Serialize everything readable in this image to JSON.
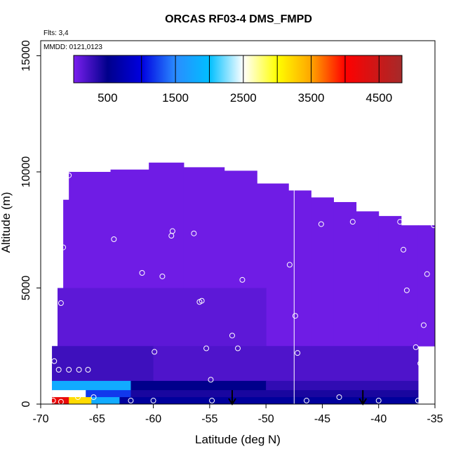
{
  "chart_data": {
    "type": "curtain",
    "title": "ORCAS RF03-4 DMS_FMPD",
    "x_label": "Latitude (deg N)",
    "y_label": "Altitude (m)",
    "annotations": [
      "Flts: 3,4",
      "MMDD: 0121,0123"
    ],
    "xlim": [
      -70,
      -35
    ],
    "ylim": [
      0,
      15650
    ],
    "xticks": [
      -70,
      -65,
      -60,
      -55,
      -50,
      -45,
      -40,
      -35
    ],
    "yticks": [
      0,
      5000,
      10000,
      15000
    ],
    "colorbar_lim": [
      0,
      4838
    ],
    "colorbar_ticks": [
      500,
      1500,
      2500,
      3500,
      4500
    ],
    "colorbar_breaks": [
      1000,
      1500,
      2000,
      2500,
      3000,
      3500,
      4000,
      4500
    ],
    "colormap": [
      [
        0,
        "#7b1fef"
      ],
      [
        500,
        "#00008b"
      ],
      [
        1000,
        "#0000e0"
      ],
      [
        1500,
        "#2a8cff"
      ],
      [
        2000,
        "#00bfff"
      ],
      [
        2500,
        "#ffffff"
      ],
      [
        3000,
        "#ffff00"
      ],
      [
        3500,
        "#ffa500"
      ],
      [
        4000,
        "#ff0000"
      ],
      [
        4838,
        "#a52a2a"
      ]
    ],
    "cells": [
      [
        -69,
        -68.5,
        0,
        2000,
        60
      ],
      [
        -68.5,
        -68,
        0,
        5000,
        60
      ],
      [
        -68,
        -67.5,
        0,
        8800,
        50
      ],
      [
        -67.5,
        -63.8,
        0,
        10000,
        50
      ],
      [
        -63.8,
        -60.4,
        0,
        10100,
        50
      ],
      [
        -60.4,
        -57.3,
        0,
        10400,
        50
      ],
      [
        -57.3,
        -53.7,
        0,
        10200,
        50
      ],
      [
        -53.7,
        -50.8,
        0,
        10050,
        50
      ],
      [
        -50.8,
        -48,
        0,
        9500,
        50
      ],
      [
        -48,
        -46,
        0,
        9200,
        50
      ],
      [
        -46,
        -44,
        0,
        8900,
        50
      ],
      [
        -44,
        -42,
        0,
        8700,
        50
      ],
      [
        -42,
        -40,
        0,
        8300,
        50
      ],
      [
        -40,
        -38,
        0,
        8100,
        50
      ],
      [
        -38,
        -36.5,
        0,
        7700,
        50
      ],
      [
        -36.5,
        -35,
        2500,
        7700,
        50
      ],
      [
        -68.5,
        -50,
        2500,
        5000,
        120
      ],
      [
        -69,
        -60,
        1000,
        2500,
        250
      ],
      [
        -60,
        -36.5,
        1000,
        2500,
        180
      ],
      [
        -69,
        -62,
        600,
        1000,
        1800
      ],
      [
        -62,
        -50,
        600,
        1000,
        500
      ],
      [
        -50,
        -36.5,
        600,
        1000,
        300
      ],
      [
        -69,
        -66,
        300,
        600,
        2500
      ],
      [
        -66,
        -62,
        300,
        600,
        1200
      ],
      [
        -62,
        -36.5,
        300,
        600,
        400
      ],
      [
        -69,
        -67.5,
        0,
        300,
        4200
      ],
      [
        -67.5,
        -65.5,
        0,
        300,
        3200
      ],
      [
        -65.5,
        -63,
        0,
        300,
        1800
      ],
      [
        -63,
        -36.5,
        0,
        300,
        600
      ]
    ],
    "divider_lat": -47.5,
    "divider_top": 9200,
    "arrows": [
      -53,
      -41.4
    ],
    "arrow_length": 600,
    "points": {
      "x": [
        -68.8,
        -68.4,
        -67.5,
        -66.6,
        -65.8,
        -68,
        -67.5,
        -68.2,
        -68.9,
        -68.2,
        -66.7,
        -65.3,
        -63.5,
        -61,
        -59.2,
        -58.3,
        -58.4,
        -56.4,
        -55.9,
        -55.7,
        -59.9,
        -55.3,
        -54.9,
        -54.8,
        -53,
        -52.5,
        -52.1,
        -62,
        -60,
        -47.9,
        -47.4,
        -47.2,
        -46.4,
        -45.1,
        -43.5,
        -42.3,
        -40,
        -38.1,
        -37.8,
        -37.5,
        -36.7,
        -36.3,
        -36.5,
        -36,
        -35.7,
        -35.1
      ],
      "y": [
        1850,
        1480,
        1480,
        1480,
        1480,
        6750,
        9850,
        4350,
        150,
        100,
        300,
        300,
        7100,
        5650,
        5500,
        7450,
        7250,
        7350,
        4400,
        4450,
        2250,
        2400,
        1050,
        150,
        2950,
        2400,
        5350,
        150,
        150,
        6000,
        3800,
        2200,
        150,
        7750,
        300,
        7850,
        150,
        7850,
        6650,
        4900,
        2450,
        1750,
        150,
        3400,
        5600,
        7700
      ]
    }
  }
}
